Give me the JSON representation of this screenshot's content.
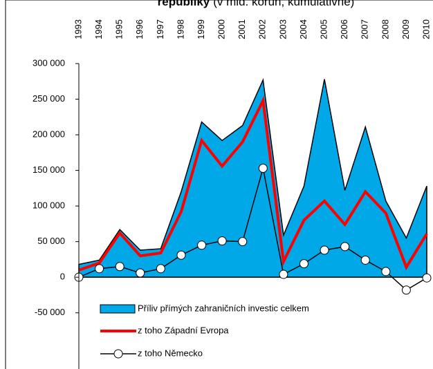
{
  "chart_data": {
    "type": "area-line",
    "title": [
      "republiky",
      "(v mld. korun, kumulativně)"
    ],
    "categories": [
      "1993",
      "1994",
      "1995",
      "1996",
      "1997",
      "1998",
      "1999",
      "2000",
      "2001",
      "2002",
      "2003",
      "2004",
      "2005",
      "2006",
      "2007",
      "2008",
      "2009",
      "2010"
    ],
    "series": [
      {
        "name": "Příliv přímých zahraničních investic celkem",
        "kind": "area",
        "color": "#00a8e8",
        "values": [
          18000,
          24000,
          67000,
          38000,
          40000,
          120000,
          218000,
          192000,
          213000,
          277000,
          59000,
          128000,
          278000,
          122000,
          211000,
          107000,
          55000,
          128000
        ]
      },
      {
        "name": "z toho Západní Evropa",
        "kind": "line",
        "color": "#ff0000",
        "values": [
          10000,
          20000,
          62000,
          30000,
          34000,
          92000,
          192000,
          156000,
          190000,
          248000,
          22000,
          80000,
          107000,
          74000,
          120000,
          90000,
          14000,
          61000
        ]
      },
      {
        "name": "z toho Německo",
        "kind": "line-marker",
        "color": "#000000",
        "values": [
          0,
          12000,
          15000,
          6000,
          12000,
          31000,
          45000,
          51000,
          50000,
          153000,
          4000,
          19000,
          38000,
          43000,
          24000,
          8000,
          -18000,
          -1000
        ]
      }
    ],
    "ylim": [
      -125000,
      300000
    ],
    "yticks": [
      {
        "value": -50000,
        "label": "-50 000"
      },
      0,
      {
        "value": 50000,
        "label": "50 000"
      },
      {
        "value": 100000,
        "label": "100 000"
      },
      {
        "value": 150000,
        "label": "150 000"
      },
      {
        "value": 200000,
        "label": "200 000"
      },
      {
        "value": 250000,
        "label": "250 000"
      },
      {
        "value": 300000,
        "label": "300 000"
      }
    ]
  }
}
